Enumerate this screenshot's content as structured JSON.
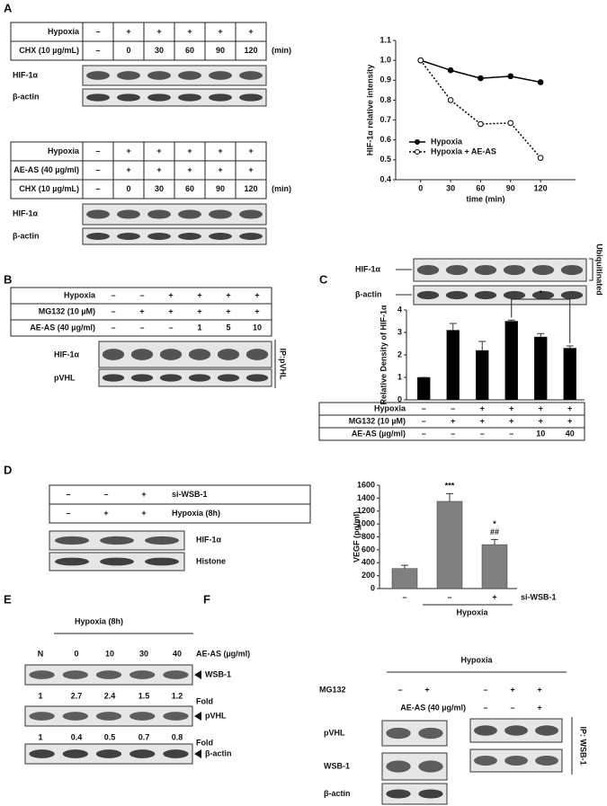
{
  "panel_labels": [
    "A",
    "B",
    "C",
    "D",
    "E",
    "F"
  ],
  "panel_a": {
    "table1": {
      "rows": [
        {
          "label": "Hypoxia",
          "cells": [
            "–",
            "+",
            "+",
            "+",
            "+",
            "+"
          ]
        },
        {
          "label": "CHX (10 µg/mL)",
          "cells": [
            "–",
            "0",
            "30",
            "60",
            "90",
            "120"
          ]
        }
      ],
      "unit": "(min)"
    },
    "blots1": [
      "HIF-1α",
      "β-actin"
    ],
    "table2": {
      "rows": [
        {
          "label": "Hypoxia",
          "cells": [
            "–",
            "+",
            "+",
            "+",
            "+",
            "+"
          ]
        },
        {
          "label": "AE-AS (40 µg/ml)",
          "cells": [
            "–",
            "+",
            "+",
            "+",
            "+",
            "+"
          ]
        },
        {
          "label": "CHX (10 µg/mL)",
          "cells": [
            "–",
            "0",
            "30",
            "60",
            "90",
            "120"
          ]
        }
      ],
      "unit": "(min)"
    },
    "blots2": [
      "HIF-1α",
      "β-actin"
    ]
  },
  "panel_b": {
    "table": {
      "rows": [
        {
          "label": "Hypoxia",
          "cells": [
            "–",
            "–",
            "+",
            "+",
            "+",
            "+"
          ]
        },
        {
          "label": "MG132 (10 µM)",
          "cells": [
            "–",
            "+",
            "+",
            "+",
            "+",
            "+"
          ]
        },
        {
          "label": "AE-AS (40 µg/ml)",
          "cells": [
            "–",
            "–",
            "–",
            "1",
            "5",
            "10"
          ]
        }
      ]
    },
    "blots": [
      "HIF-1α",
      "pVHL"
    ],
    "ip": "IP:pVHL"
  },
  "panel_c": {
    "blots": [
      "HIF-1α",
      "β-actin"
    ],
    "side_label": "Ubiquitinated",
    "table": {
      "rows": [
        {
          "label": "Hypoxia",
          "cells": [
            "–",
            "–",
            "+",
            "+",
            "+",
            "+"
          ]
        },
        {
          "label": "MG132 (10 µM)",
          "cells": [
            "–",
            "+",
            "+",
            "+",
            "+",
            "+"
          ]
        },
        {
          "label": "AE-AS (µg/ml)",
          "cells": [
            "–",
            "–",
            "–",
            "–",
            "10",
            "40"
          ]
        }
      ]
    }
  },
  "panel_d": {
    "table": {
      "rows": [
        {
          "label": "si-WSB-1",
          "cells": [
            "–",
            "–",
            "+"
          ]
        },
        {
          "label": "Hypoxia (8h)",
          "cells": [
            "–",
            "+",
            "+"
          ]
        }
      ]
    },
    "blots": [
      "HIF-1α",
      "Histone"
    ]
  },
  "panel_e": {
    "condition": "Hypoxia (8h)",
    "lanes": [
      "N",
      "0",
      "10",
      "30",
      "40"
    ],
    "lane_title": "AE-AS (µg/ml)",
    "blots": [
      {
        "label": "WSB-1",
        "fold": [
          "1",
          "2.7",
          "2.4",
          "1.5",
          "1.2"
        ],
        "fold_label": "Fold"
      },
      {
        "label": "pVHL",
        "fold": [
          "1",
          "0.4",
          "0.5",
          "0.7",
          "0.8"
        ],
        "fold_label": "Fold"
      },
      {
        "label": "β-actin"
      }
    ]
  },
  "panel_f": {
    "condition": "Hypoxia",
    "mg132": {
      "label": "MG132",
      "left": [
        "–",
        "+"
      ],
      "right": [
        "–",
        "+",
        "+"
      ]
    },
    "aeas": {
      "label": "AE-AS (40 µg/ml)",
      "right": [
        "–",
        "–",
        "+"
      ]
    },
    "blots": [
      "pVHL",
      "WSB-1",
      "β-actin"
    ],
    "ip": "IP: WSB-1"
  },
  "chart_data": [
    {
      "type": "line",
      "xlabel": "time (min)",
      "ylabel": "HIF-1α relative intensity",
      "x": [
        0,
        30,
        60,
        90,
        120
      ],
      "xlim": [
        -25,
        155
      ],
      "xticks": [
        0,
        30,
        60,
        90,
        120
      ],
      "ylim": [
        0.4,
        1.1
      ],
      "yticks": [
        0.4,
        0.5,
        0.6,
        0.7,
        0.8,
        0.9,
        {
          "value": 1,
          "label": "1.0"
        },
        1.1
      ],
      "legend": "lower left",
      "series": [
        {
          "name": "Hypoxia",
          "color": "#000000",
          "style": "solid",
          "marker": "filled",
          "values": [
            1.0,
            0.95,
            0.91,
            0.92,
            0.89
          ]
        },
        {
          "name": "Hypoxia + AE-AS",
          "color": "#000000",
          "style": "dotted",
          "marker": "open",
          "values": [
            1.0,
            0.8,
            0.68,
            0.685,
            0.51
          ]
        }
      ]
    },
    {
      "type": "bar",
      "ylabel": "Relative Density of HIF-1α",
      "values": [
        1,
        3.1,
        2.2,
        3.5,
        2.8,
        2.3
      ],
      "errors": [
        0,
        0.3,
        0.4,
        0.05,
        0.15,
        0.1
      ],
      "ylim": [
        0,
        4
      ],
      "yticks": [
        0,
        1,
        2,
        3,
        4
      ],
      "color": "#000000",
      "annotations": [
        null,
        null,
        null,
        null,
        null,
        [
          "*"
        ]
      ]
    },
    {
      "type": "bar",
      "ylabel": "VEGF (pg/ml)",
      "categories": [
        "–",
        "–",
        "+"
      ],
      "series_label": "si-WSB-1",
      "group_label": "Hypoxia",
      "values": [
        310,
        1350,
        680
      ],
      "errors": [
        50,
        120,
        80
      ],
      "ylim": [
        0,
        1600
      ],
      "yticks": [
        0,
        200,
        400,
        600,
        800,
        1000,
        1200,
        1400,
        1600
      ],
      "color": "#808080",
      "annotations": [
        null,
        [
          "***"
        ],
        [
          "*",
          "##"
        ]
      ]
    }
  ]
}
